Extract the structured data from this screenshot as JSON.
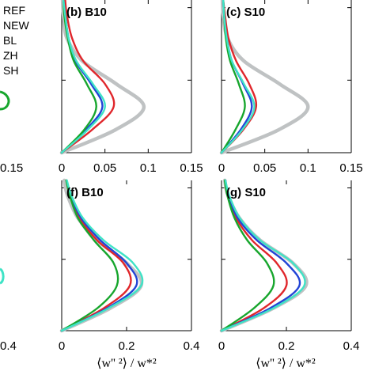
{
  "legend": {
    "entries": [
      "REF",
      "NEW",
      "BL",
      "ZH",
      "SH"
    ]
  },
  "colors": {
    "REF": "#bfc2c3",
    "NEW": "#e0262b",
    "BL": "#2244d6",
    "ZH": "#17a62d",
    "SH": "#3fe3c6",
    "axis": "#000000"
  },
  "xlabel": "⟨w'' ²⟩ / w*²",
  "chart_data": [
    {
      "id": "b",
      "type": "line",
      "title": "(b) B10",
      "xlim": [
        0,
        0.15
      ],
      "xticks": [
        "0",
        "0.05",
        "0.1",
        "0.15"
      ],
      "xtick_values": [
        0,
        0.05,
        0.1,
        0.15
      ],
      "y_normalized": [
        0,
        0.15,
        0.3,
        0.45,
        0.6,
        0.75,
        0.9,
        1.0
      ],
      "series": [
        {
          "name": "REF",
          "x": [
            0.0,
            0.062,
            0.095,
            0.063,
            0.024,
            0.006,
            0.002,
            0.001
          ]
        },
        {
          "name": "NEW",
          "x": [
            0.0,
            0.035,
            0.06,
            0.05,
            0.025,
            0.012,
            0.006,
            0.004
          ]
        },
        {
          "name": "BL",
          "x": [
            0.0,
            0.028,
            0.047,
            0.034,
            0.016,
            0.008,
            0.004,
            0.002
          ]
        },
        {
          "name": "ZH",
          "x": [
            0.0,
            0.026,
            0.04,
            0.029,
            0.014,
            0.007,
            0.003,
            0.002
          ]
        },
        {
          "name": "SH",
          "x": [
            0.0,
            0.03,
            0.05,
            0.036,
            0.017,
            0.008,
            0.004,
            0.002
          ]
        }
      ]
    },
    {
      "id": "c",
      "type": "line",
      "title": "(c) S10",
      "xlim": [
        0,
        0.15
      ],
      "xticks": [
        "0",
        "0.05",
        "0.1",
        "0.15"
      ],
      "xtick_values": [
        0,
        0.05,
        0.1,
        0.15
      ],
      "y_normalized": [
        0,
        0.15,
        0.3,
        0.45,
        0.6,
        0.75,
        0.9,
        1.0
      ],
      "series": [
        {
          "name": "REF",
          "x": [
            0.0,
            0.066,
            0.1,
            0.067,
            0.026,
            0.007,
            0.002,
            0.001
          ]
        },
        {
          "name": "NEW",
          "x": [
            0.0,
            0.025,
            0.04,
            0.032,
            0.017,
            0.008,
            0.004,
            0.002
          ]
        },
        {
          "name": "BL",
          "x": [
            0.0,
            0.022,
            0.035,
            0.025,
            0.012,
            0.006,
            0.003,
            0.002
          ]
        },
        {
          "name": "ZH",
          "x": [
            0.0,
            0.016,
            0.027,
            0.02,
            0.01,
            0.005,
            0.003,
            0.002
          ]
        },
        {
          "name": "SH",
          "x": [
            0.0,
            0.024,
            0.038,
            0.026,
            0.012,
            0.006,
            0.003,
            0.002
          ]
        }
      ]
    },
    {
      "id": "f",
      "type": "line",
      "title": "(f) B10",
      "xlim": [
        0,
        0.4
      ],
      "xticks": [
        "0",
        "0.2",
        "0.4"
      ],
      "xtick_values": [
        0,
        0.2,
        0.4
      ],
      "y_normalized": [
        0,
        0.15,
        0.3,
        0.45,
        0.6,
        0.75,
        0.9,
        1.0
      ],
      "series": [
        {
          "name": "REF",
          "x": [
            0.0,
            0.15,
            0.245,
            0.2,
            0.11,
            0.05,
            0.018,
            0.008
          ]
        },
        {
          "name": "NEW",
          "x": [
            0.0,
            0.13,
            0.21,
            0.19,
            0.11,
            0.055,
            0.025,
            0.015
          ]
        },
        {
          "name": "BL",
          "x": [
            0.0,
            0.14,
            0.23,
            0.2,
            0.12,
            0.06,
            0.028,
            0.015
          ]
        },
        {
          "name": "ZH",
          "x": [
            0.0,
            0.11,
            0.17,
            0.16,
            0.1,
            0.05,
            0.025,
            0.014
          ]
        },
        {
          "name": "SH",
          "x": [
            0.0,
            0.145,
            0.245,
            0.22,
            0.13,
            0.065,
            0.03,
            0.016
          ]
        }
      ]
    },
    {
      "id": "g",
      "type": "line",
      "title": "(g) S10",
      "xlim": [
        0,
        0.4
      ],
      "xticks": [
        "0",
        "0.2",
        "0.4"
      ],
      "xtick_values": [
        0,
        0.2,
        0.4
      ],
      "y_normalized": [
        0,
        0.15,
        0.3,
        0.45,
        0.6,
        0.75,
        0.9,
        1.0
      ],
      "series": [
        {
          "name": "REF",
          "x": [
            0.0,
            0.16,
            0.26,
            0.22,
            0.12,
            0.055,
            0.02,
            0.01
          ]
        },
        {
          "name": "NEW",
          "x": [
            0.0,
            0.13,
            0.2,
            0.17,
            0.095,
            0.045,
            0.02,
            0.012
          ]
        },
        {
          "name": "BL",
          "x": [
            0.0,
            0.15,
            0.24,
            0.2,
            0.11,
            0.05,
            0.022,
            0.012
          ]
        },
        {
          "name": "ZH",
          "x": [
            0.0,
            0.1,
            0.16,
            0.14,
            0.08,
            0.04,
            0.018,
            0.01
          ]
        },
        {
          "name": "SH",
          "x": [
            0.0,
            0.16,
            0.255,
            0.22,
            0.12,
            0.056,
            0.024,
            0.012
          ]
        }
      ]
    }
  ],
  "left_fragments": {
    "top_tick": "0.15",
    "bottom_tick": "0.4"
  }
}
